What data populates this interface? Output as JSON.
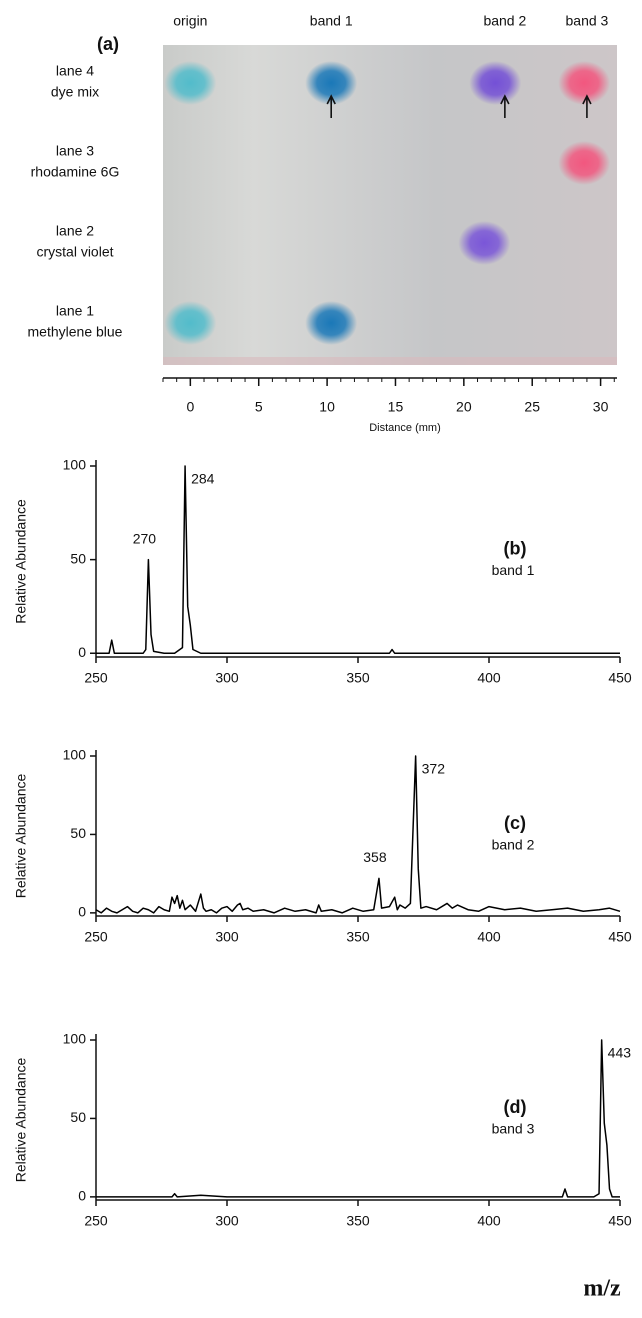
{
  "chart_data": [
    {
      "type": "tlc",
      "title": "(a)",
      "xlabel": "Distance (mm)",
      "xlim": [
        -2,
        31.2
      ],
      "xticks": [
        0,
        5,
        10,
        15,
        20,
        25,
        30
      ],
      "bands": {
        "labels": [
          "origin",
          "band 1",
          "band 2",
          "band 3"
        ],
        "positions": [
          0,
          10.3,
          23,
          29
        ]
      },
      "lanes": [
        {
          "name": "lane 4",
          "compound": "dye mix",
          "spots": [
            {
              "x": 0,
              "color": "#52bccb"
            },
            {
              "x": 10.3,
              "color": "#1a78b8"
            },
            {
              "x": 22.3,
              "color": "#7450d6"
            },
            {
              "x": 28.8,
              "color": "#f2577f"
            }
          ]
        },
        {
          "name": "lane 3",
          "compound": "rhodamine 6G",
          "spots": [
            {
              "x": 28.8,
              "color": "#f2577f"
            }
          ]
        },
        {
          "name": "lane 2",
          "compound": "crystal violet",
          "spots": [
            {
              "x": 21.5,
              "color": "#7a56d8"
            }
          ]
        },
        {
          "name": "lane 1",
          "compound": "methylene blue",
          "spots": [
            {
              "x": 0,
              "color": "#52bccb"
            },
            {
              "x": 10.3,
              "color": "#1a78b8"
            }
          ]
        }
      ]
    },
    {
      "type": "line",
      "title": "(b)",
      "subtitle": "band 1",
      "ylabel": "Relative Abundance",
      "color": "#000000",
      "xlim": [
        250,
        450
      ],
      "xticks": [
        250,
        300,
        350,
        400,
        450
      ],
      "ylim": [
        -2,
        100
      ],
      "yticks": [
        0,
        50,
        100
      ],
      "x": [
        250,
        255,
        256,
        257,
        262,
        268,
        269,
        270,
        271,
        272,
        276,
        280,
        282,
        283,
        284,
        285,
        286,
        287,
        290,
        300,
        320,
        340,
        362,
        363,
        364,
        380,
        400,
        420,
        440,
        450
      ],
      "values": [
        0,
        0,
        7,
        0,
        0,
        0,
        2,
        50,
        10,
        1,
        0,
        0,
        2,
        3,
        100,
        25,
        15,
        2,
        0,
        0,
        0,
        0,
        0,
        2,
        0,
        0,
        0,
        0,
        0,
        0
      ],
      "peaks": [
        {
          "x": 270,
          "y": 50
        },
        {
          "x": 284,
          "y": 100
        }
      ]
    },
    {
      "type": "line",
      "title": "(c)",
      "subtitle": "band 2",
      "ylabel": "Relative Abundance",
      "color": "#000000",
      "xlim": [
        250,
        450
      ],
      "xticks": [
        250,
        300,
        350,
        400,
        450
      ],
      "ylim": [
        -2,
        100
      ],
      "yticks": [
        0,
        50,
        100
      ],
      "x": [
        250,
        252,
        254,
        256,
        258,
        260,
        262,
        264,
        266,
        268,
        270,
        272,
        274,
        276,
        278,
        279,
        280,
        281,
        282,
        283,
        284,
        286,
        288,
        290,
        291,
        292,
        294,
        296,
        298,
        300,
        302,
        304,
        305,
        306,
        308,
        310,
        314,
        318,
        322,
        326,
        330,
        334,
        335,
        336,
        340,
        344,
        348,
        352,
        356,
        358,
        359,
        362,
        364,
        365,
        366,
        368,
        370,
        372,
        373,
        374,
        376,
        380,
        384,
        386,
        388,
        392,
        396,
        400,
        406,
        412,
        418,
        424,
        430,
        436,
        442,
        446,
        450
      ],
      "values": [
        2,
        0,
        3,
        1,
        0,
        2,
        4,
        1,
        0,
        3,
        2,
        0,
        4,
        2,
        1,
        10,
        6,
        11,
        3,
        8,
        2,
        5,
        1,
        12,
        3,
        1,
        2,
        0,
        3,
        4,
        1,
        5,
        6,
        2,
        3,
        1,
        2,
        0,
        3,
        1,
        2,
        0,
        5,
        1,
        2,
        0,
        3,
        1,
        2,
        22,
        3,
        4,
        10,
        2,
        5,
        3,
        6,
        100,
        28,
        3,
        4,
        2,
        6,
        3,
        5,
        2,
        1,
        4,
        2,
        3,
        1,
        2,
        3,
        1,
        2,
        3,
        1
      ],
      "peaks": [
        {
          "x": 358,
          "y": 22
        },
        {
          "x": 372,
          "y": 100
        }
      ]
    },
    {
      "type": "line",
      "title": "(d)",
      "subtitle": "band 3",
      "ylabel": "Relative Abundance",
      "xlabel": "m/z",
      "color": "#000000",
      "xlim": [
        250,
        450
      ],
      "xticks": [
        250,
        300,
        350,
        400,
        450
      ],
      "ylim": [
        -2,
        100
      ],
      "yticks": [
        0,
        50,
        100
      ],
      "x": [
        250,
        270,
        279,
        280,
        281,
        290,
        300,
        350,
        400,
        428,
        429,
        430,
        440,
        442,
        443,
        444,
        445,
        446,
        447,
        450
      ],
      "values": [
        0,
        0,
        0,
        2,
        0,
        1,
        0,
        0,
        0,
        0,
        5,
        0,
        0,
        2,
        100,
        47,
        33,
        5,
        0,
        0
      ],
      "peaks": [
        {
          "x": 443,
          "y": 100
        }
      ]
    }
  ]
}
